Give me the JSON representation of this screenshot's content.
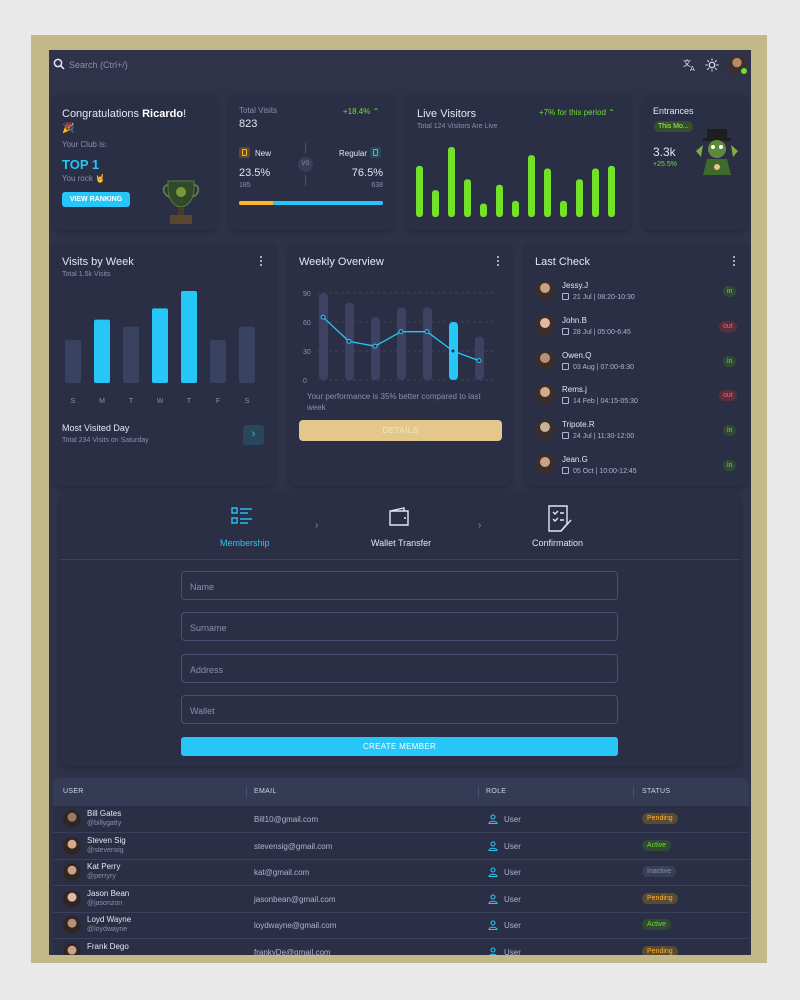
{
  "search": {
    "placeholder": "Search (Ctrl+/)"
  },
  "congrats": {
    "title_prefix": "Congratulations ",
    "name": "Ricardo",
    "title_suffix": "!",
    "emoji": "🎉",
    "subtitle": "Your Club is:",
    "rank": "TOP 1",
    "tagline": "You rock 🤘",
    "button": "VIEW RANKING"
  },
  "total_visits": {
    "label": "Total Visits",
    "value": "823",
    "change": "+18.4%",
    "new_label": "New",
    "new_pct": "23.5%",
    "new_count": "185",
    "vs": "VS",
    "regular_label": "Regular",
    "regular_pct": "76.5%",
    "regular_count": "638",
    "new_share": 0.235
  },
  "live_visitors": {
    "title": "Live Visitors",
    "subtitle": "Total 124 Visitors Are Live",
    "change": "+7% for this period",
    "bars": [
      38,
      20,
      52,
      28,
      10,
      24,
      12,
      46,
      36,
      12,
      28,
      36,
      38
    ],
    "color": "#72e128"
  },
  "entrances": {
    "title": "Entrances",
    "badge": "This Mo...",
    "value": "3.3k",
    "change": "+25.5%"
  },
  "visits_by_week": {
    "title": "Visits by Week",
    "subtitle": "Total 1.5k Visits",
    "days": [
      "S",
      "M",
      "T",
      "W",
      "T",
      "F",
      "S"
    ],
    "values": [
      42,
      62,
      55,
      73,
      90,
      42,
      55
    ],
    "highlight": [
      false,
      true,
      false,
      true,
      true,
      false,
      false
    ],
    "most_title": "Most Visited Day",
    "most_sub": "Total 234 Visits on Saturday"
  },
  "weekly_overview": {
    "title": "Weekly Overview",
    "text": "Your performance is 35% better compared to last week",
    "button": "DETAILS",
    "chart_data": {
      "type": "bar",
      "series": [
        {
          "name": "",
          "values": [
            90,
            80,
            65,
            75,
            75,
            60,
            45
          ]
        }
      ],
      "line": [
        65,
        40,
        35,
        50,
        50,
        30,
        20
      ],
      "highlight_index": 5,
      "ylim": [
        0,
        90
      ],
      "yticks": [
        "90",
        "60",
        "30",
        "0"
      ]
    }
  },
  "last_check": {
    "title": "Last Check",
    "items": [
      {
        "name": "Jessy.J",
        "date": "21 Jul | 08:20-10:30",
        "status": "in"
      },
      {
        "name": "John.B",
        "date": "28 Jul | 05:00-6:45",
        "status": "out"
      },
      {
        "name": "Owen.Q",
        "date": "03 Aug | 07:00-8:30",
        "status": "in"
      },
      {
        "name": "Rems.j",
        "date": "14 Feb | 04:15-05:30",
        "status": "out"
      },
      {
        "name": "Tripote.R",
        "date": "24 Jul | 11:30-12:00",
        "status": "in"
      },
      {
        "name": "Jean.G",
        "date": "05 Oct | 10:00-12:45",
        "status": "in"
      }
    ]
  },
  "stepper": {
    "steps": [
      "Membership",
      "Wallet Transfer",
      "Confirmation"
    ],
    "active": 0
  },
  "form": {
    "name": "Name",
    "surname": "Surname",
    "address": "Address",
    "wallet": "Wallet",
    "submit": "CREATE MEMBER"
  },
  "table": {
    "columns": [
      "USER",
      "EMAIL",
      "ROLE",
      "STATUS"
    ],
    "rows": [
      {
        "name": "Bill Gates",
        "handle": "@billygatty",
        "email": "Bill10@gmail.com",
        "role": "User",
        "status": "Pending"
      },
      {
        "name": "Steven Sig",
        "handle": "@stevensig",
        "email": "stevensig@gmail.com",
        "role": "User",
        "status": "Active"
      },
      {
        "name": "Kat Perry",
        "handle": "@perryry",
        "email": "kat@gmail.com",
        "role": "User",
        "status": "Inactive"
      },
      {
        "name": "Jason Bean",
        "handle": "@jasonzon",
        "email": "jasonbean@gmail.com",
        "role": "User",
        "status": "Pending"
      },
      {
        "name": "Loyd Wayne",
        "handle": "@loydwayne",
        "email": "loydwayne@gmail.com",
        "role": "User",
        "status": "Active"
      },
      {
        "name": "Frank Dego",
        "handle": "",
        "email": "frankyDe@gmail.com",
        "role": "User",
        "status": "Pending"
      }
    ]
  },
  "colors": {
    "accent": "#26c6f9",
    "green": "#72e128",
    "warning": "#fdb528",
    "error": "#ff4d49",
    "bg": "#2f3349",
    "card": "#2b2f45"
  }
}
